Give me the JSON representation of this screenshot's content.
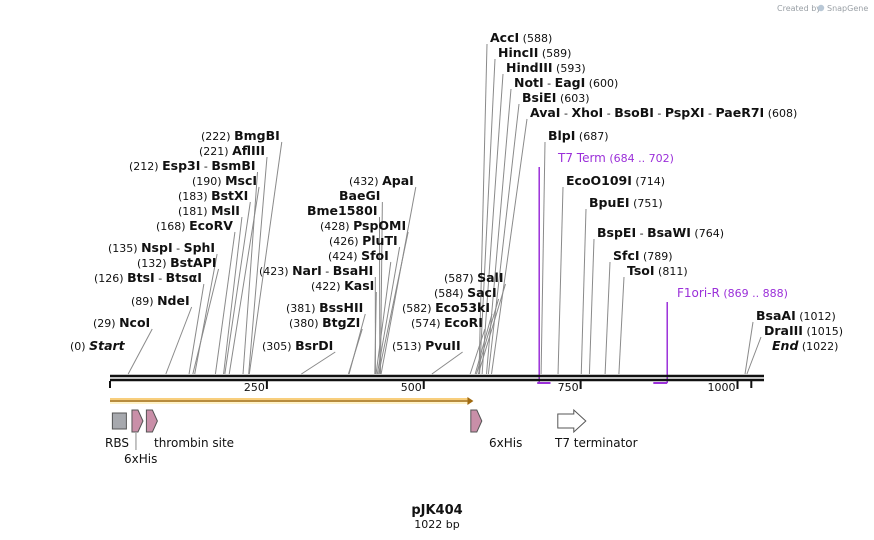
{
  "credit": {
    "prefix": "Created by",
    "brand": "SnapGene"
  },
  "plasmid": {
    "name": "pJK404",
    "length_label": "1022 bp",
    "length": 1022
  },
  "colors": {
    "primer": "#9b30d9",
    "orf": "#f0a830",
    "his": "#c98fa8",
    "rbs": "#a7a9ae",
    "terminator": "#ffffff"
  },
  "ruler": {
    "ticks": [
      250,
      500,
      750,
      1000
    ]
  },
  "sites": [
    {
      "names": [
        "Start"
      ],
      "pos": "(0)",
      "bp": 0,
      "side": "left",
      "italic": true
    },
    {
      "names": [
        "NcoI"
      ],
      "pos": "(29)",
      "bp": 29,
      "side": "left"
    },
    {
      "names": [
        "NdeI"
      ],
      "pos": "(89)",
      "bp": 89,
      "side": "left"
    },
    {
      "names": [
        "BtsI",
        "BtsαI"
      ],
      "pos": "(126)",
      "bp": 126,
      "side": "left"
    },
    {
      "names": [
        "BstAPI"
      ],
      "pos": "(132)",
      "bp": 132,
      "side": "left"
    },
    {
      "names": [
        "NspI",
        "SphI"
      ],
      "pos": "(135)",
      "bp": 135,
      "side": "left"
    },
    {
      "names": [
        "EcoRV"
      ],
      "pos": "(168)",
      "bp": 168,
      "side": "left"
    },
    {
      "names": [
        "MslI"
      ],
      "pos": "(181)",
      "bp": 181,
      "side": "left"
    },
    {
      "names": [
        "BstXI"
      ],
      "pos": "(183)",
      "bp": 183,
      "side": "left"
    },
    {
      "names": [
        "MscI"
      ],
      "pos": "(190)",
      "bp": 190,
      "side": "left"
    },
    {
      "names": [
        "Esp3I",
        "BsmBI"
      ],
      "pos": "(212)",
      "bp": 212,
      "side": "left"
    },
    {
      "names": [
        "AflIII"
      ],
      "pos": "(221)",
      "bp": 221,
      "side": "left"
    },
    {
      "names": [
        "BmgBI"
      ],
      "pos": "(222)",
      "bp": 222,
      "side": "left"
    },
    {
      "names": [
        "BsrDI"
      ],
      "pos": "(305)",
      "bp": 305,
      "side": "left"
    },
    {
      "names": [
        "BtgZI"
      ],
      "pos": "(380)",
      "bp": 380,
      "side": "left"
    },
    {
      "names": [
        "BssHII"
      ],
      "pos": "(381)",
      "bp": 381,
      "side": "left"
    },
    {
      "names": [
        "KasI"
      ],
      "pos": "(422)",
      "bp": 422,
      "side": "left"
    },
    {
      "names": [
        "NarI",
        "BsaHI"
      ],
      "pos": "(423)",
      "bp": 423,
      "side": "left"
    },
    {
      "names": [
        "SfoI"
      ],
      "pos": "(424)",
      "bp": 424,
      "side": "left"
    },
    {
      "names": [
        "PluTI"
      ],
      "pos": "(426)",
      "bp": 426,
      "side": "left"
    },
    {
      "names": [
        "PspOMI"
      ],
      "pos": "(428)",
      "bp": 428,
      "side": "left"
    },
    {
      "names": [
        "Bme1580I"
      ],
      "pos": "",
      "bp": 430,
      "side": "left"
    },
    {
      "names": [
        "BaeGI"
      ],
      "pos": "",
      "bp": 431,
      "side": "left"
    },
    {
      "names": [
        "ApaI"
      ],
      "pos": "(432)",
      "bp": 432,
      "side": "left"
    },
    {
      "names": [
        "PvuII"
      ],
      "pos": "(513)",
      "bp": 513,
      "side": "left"
    },
    {
      "names": [
        "EcoRI"
      ],
      "pos": "(574)",
      "bp": 574,
      "side": "left"
    },
    {
      "names": [
        "Eco53kI"
      ],
      "pos": "(582)",
      "bp": 582,
      "side": "left"
    },
    {
      "names": [
        "SacI"
      ],
      "pos": "(584)",
      "bp": 584,
      "side": "left"
    },
    {
      "names": [
        "SalI"
      ],
      "pos": "(587)",
      "bp": 587,
      "side": "left"
    },
    {
      "names": [
        "AccI"
      ],
      "pos": "(588)",
      "bp": 588,
      "side": "right"
    },
    {
      "names": [
        "HincII"
      ],
      "pos": "(589)",
      "bp": 589,
      "side": "right"
    },
    {
      "names": [
        "HindIII"
      ],
      "pos": "(593)",
      "bp": 593,
      "side": "right"
    },
    {
      "names": [
        "NotI",
        "EagI"
      ],
      "pos": "(600)",
      "bp": 600,
      "side": "right"
    },
    {
      "names": [
        "BsiEI"
      ],
      "pos": "(603)",
      "bp": 603,
      "side": "right"
    },
    {
      "names": [
        "AvaI",
        "XhoI",
        "BsoBI",
        "PspXI",
        "PaeR7I"
      ],
      "pos": "(608)",
      "bp": 608,
      "side": "right"
    },
    {
      "names": [
        "BlpI"
      ],
      "pos": "(687)",
      "bp": 687,
      "side": "right"
    },
    {
      "names": [
        "EcoO109I"
      ],
      "pos": "(714)",
      "bp": 714,
      "side": "right"
    },
    {
      "names": [
        "BpuEI"
      ],
      "pos": "(751)",
      "bp": 751,
      "side": "right"
    },
    {
      "names": [
        "BspEI",
        "BsaWI"
      ],
      "pos": "(764)",
      "bp": 764,
      "side": "right"
    },
    {
      "names": [
        "SfcI"
      ],
      "pos": "(789)",
      "bp": 789,
      "side": "right"
    },
    {
      "names": [
        "TsoI"
      ],
      "pos": "(811)",
      "bp": 811,
      "side": "right"
    },
    {
      "names": [
        "BsaAI"
      ],
      "pos": "(1012)",
      "bp": 1012,
      "side": "right"
    },
    {
      "names": [
        "DraIII"
      ],
      "pos": "(1015)",
      "bp": 1015,
      "side": "right"
    },
    {
      "names": [
        "End"
      ],
      "pos": "(1022)",
      "bp": 1022,
      "side": "right",
      "italic": true
    }
  ],
  "primers": [
    {
      "name": "T7 Term",
      "range": "(684 .. 702)",
      "start": 684,
      "end": 702
    },
    {
      "name": "F1ori-R",
      "range": "(869 .. 888)",
      "start": 869,
      "end": 888
    }
  ],
  "features": [
    {
      "name": "RBS",
      "kind": "rbs",
      "bp": 3
    },
    {
      "name": "6xHis",
      "kind": "his",
      "bp": 35
    },
    {
      "name": "thrombin site",
      "kind": "his",
      "bp": 58
    },
    {
      "name": "6xHis",
      "kind": "his",
      "bp": 575
    },
    {
      "name": "T7 terminator",
      "kind": "terminator",
      "bp": 720
    },
    {
      "name": "",
      "kind": "orf",
      "start": 0,
      "end": 576
    }
  ]
}
